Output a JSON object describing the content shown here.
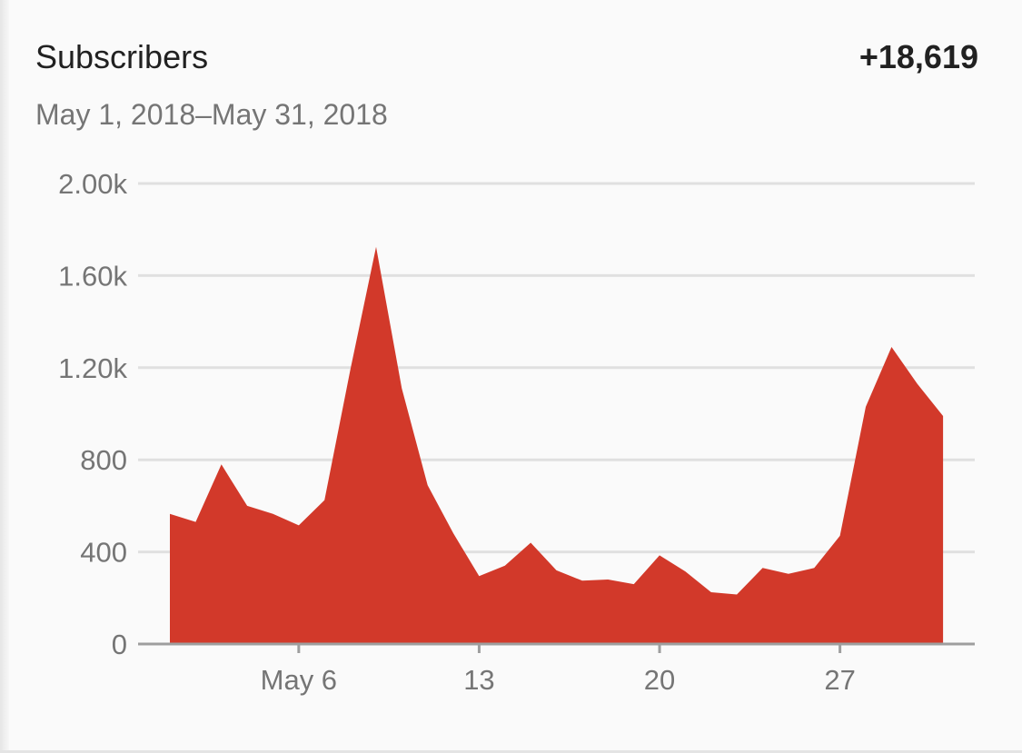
{
  "header": {
    "title": "Subscribers",
    "total": "+18,619",
    "date_range": "May 1, 2018–May 31, 2018"
  },
  "colors": {
    "area": "#d2392a",
    "grid": "#e0e0e0",
    "axis": "#9e9e9e",
    "label": "#757575"
  },
  "chart_data": {
    "type": "area",
    "x": [
      "May 1",
      "May 2",
      "May 3",
      "May 4",
      "May 5",
      "May 6",
      "May 7",
      "May 8",
      "May 9",
      "May 10",
      "May 11",
      "May 12",
      "May 13",
      "May 14",
      "May 15",
      "May 16",
      "May 17",
      "May 18",
      "May 19",
      "May 20",
      "May 21",
      "May 22",
      "May 23",
      "May 24",
      "May 25",
      "May 26",
      "May 27",
      "May 28",
      "May 29",
      "May 30",
      "May 31"
    ],
    "series": [
      {
        "values": [
          565,
          530,
          780,
          600,
          565,
          515,
          625,
          1190,
          1725,
          1110,
          690,
          480,
          295,
          340,
          440,
          320,
          275,
          280,
          260,
          385,
          315,
          225,
          215,
          330,
          305,
          330,
          470,
          1030,
          1290,
          1130,
          990
        ]
      }
    ],
    "x_ticks": [
      {
        "index": 5,
        "label": "May 6"
      },
      {
        "index": 12,
        "label": "13"
      },
      {
        "index": 19,
        "label": "20"
      },
      {
        "index": 26,
        "label": "27"
      }
    ],
    "y_ticks": [
      {
        "value": 0,
        "label": "0"
      },
      {
        "value": 400,
        "label": "400"
      },
      {
        "value": 800,
        "label": "800"
      },
      {
        "value": 1200,
        "label": "1.20k"
      },
      {
        "value": 1600,
        "label": "1.60k"
      },
      {
        "value": 2000,
        "label": "2.00k"
      }
    ],
    "ylim": [
      0,
      2000
    ],
    "grid": true,
    "legend": "none"
  }
}
